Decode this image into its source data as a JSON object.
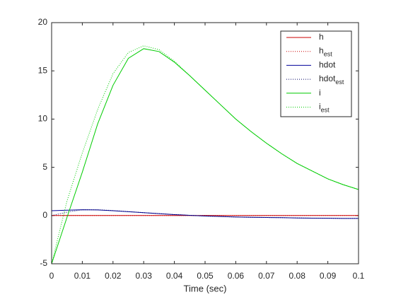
{
  "chart_data": {
    "type": "line",
    "xlabel": "Time (sec)",
    "x": [
      0,
      0.005,
      0.01,
      0.015,
      0.02,
      0.025,
      0.03,
      0.035,
      0.04,
      0.045,
      0.05,
      0.055,
      0.06,
      0.065,
      0.07,
      0.075,
      0.08,
      0.085,
      0.09,
      0.095,
      0.1
    ],
    "xlim": [
      0,
      0.1
    ],
    "xticks": [
      0,
      0.01,
      0.02,
      0.03,
      0.04,
      0.05,
      0.06,
      0.07,
      0.08,
      0.09,
      0.1
    ],
    "ylim": [
      -5,
      20
    ],
    "yticks": [
      -5,
      0,
      5,
      10,
      15,
      20
    ],
    "grid": false,
    "legend": "northeast",
    "series": [
      {
        "name": "h",
        "color": "#cc0000",
        "style": "solid",
        "values": [
          0,
          0,
          0,
          0,
          0,
          0,
          0,
          0,
          0,
          0,
          0,
          0,
          0,
          0,
          0,
          0,
          0,
          0,
          0,
          0,
          0
        ]
      },
      {
        "name": "h",
        "subscript": "est",
        "color": "#cc0000",
        "style": "dotted",
        "values": [
          0,
          0,
          0,
          0,
          0,
          0,
          0,
          0,
          0,
          0,
          0,
          0,
          0,
          0,
          0,
          0,
          0,
          0,
          0,
          0,
          0
        ]
      },
      {
        "name": "hdot",
        "color": "#000099",
        "style": "solid",
        "values": [
          0.5,
          0.55,
          0.6,
          0.58,
          0.5,
          0.4,
          0.3,
          0.2,
          0.1,
          0.02,
          -0.05,
          -0.1,
          -0.15,
          -0.18,
          -0.2,
          -0.22,
          -0.25,
          -0.27,
          -0.28,
          -0.3,
          -0.3
        ]
      },
      {
        "name": "hdot",
        "subscript": "est",
        "color": "#000066",
        "style": "dotted",
        "values": [
          0,
          0.35,
          0.6,
          0.6,
          0.52,
          0.41,
          0.3,
          0.2,
          0.1,
          0.02,
          -0.05,
          -0.1,
          -0.15,
          -0.18,
          -0.2,
          -0.22,
          -0.25,
          -0.27,
          -0.28,
          -0.3,
          -0.3
        ]
      },
      {
        "name": "i",
        "color": "#00cc00",
        "style": "solid",
        "values": [
          -5,
          -0.2,
          4.5,
          9.5,
          13.5,
          16.3,
          17.3,
          17,
          15.9,
          14.5,
          13,
          11.5,
          10,
          8.7,
          7.5,
          6.4,
          5.4,
          4.6,
          3.8,
          3.2,
          2.7
        ]
      },
      {
        "name": "i",
        "subscript": "est",
        "color": "#00cc00",
        "style": "dotted",
        "values": [
          -5,
          1.5,
          6.5,
          11,
          14.7,
          16.9,
          17.6,
          17.2,
          16,
          14.5,
          13,
          11.5,
          10,
          8.7,
          7.5,
          6.4,
          5.4,
          4.6,
          3.8,
          3.2,
          2.7
        ]
      }
    ]
  }
}
